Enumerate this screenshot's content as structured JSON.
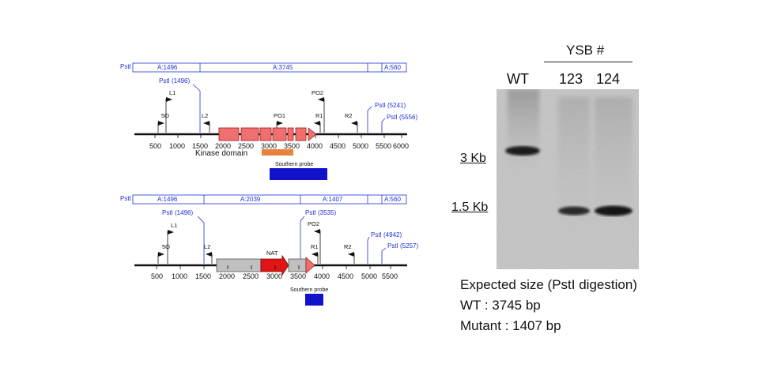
{
  "wt_map": {
    "restriction_bar": {
      "left_label": "PstI",
      "segments": [
        "A:1496",
        "A:3745",
        "A:560"
      ]
    },
    "pst_sites": [
      "PstI (1496)",
      "PstI (5241)",
      "PstI (5556)"
    ],
    "primers": [
      "L1",
      "5O",
      "L2",
      "PO1",
      "PO2",
      "R1",
      "R2"
    ],
    "axis_ticks": [
      "500",
      "1000",
      "1500",
      "2000",
      "2500",
      "3000",
      "3500",
      "4000",
      "4500",
      "5000",
      "5500",
      "6000"
    ],
    "feature_label": "Kinase domain",
    "probe_label": "Southern probe"
  },
  "mut_map": {
    "restriction_bar": {
      "left_label": "PstI",
      "segments": [
        "A:1496",
        "A:2039",
        "A:1407",
        "A:560"
      ]
    },
    "pst_sites": [
      "PstI (1496)",
      "PstI (3535)",
      "PstI (4942)",
      "PstI (5257)"
    ],
    "primers": [
      "L1",
      "5O",
      "L2",
      "PO2",
      "R1",
      "R2"
    ],
    "cassette_label": "NAT",
    "axis_ticks": [
      "500",
      "1000",
      "1500",
      "2000",
      "2500",
      "3000",
      "3500",
      "4000",
      "4500",
      "5000",
      "5500"
    ],
    "probe_label": "Southern probe"
  },
  "gel": {
    "group_label": "YSB #",
    "lanes": [
      "WT",
      "123",
      "124"
    ],
    "markers": [
      "3 Kb",
      "1.5 Kb"
    ]
  },
  "expected": {
    "title": "Expected size (PstI digestion)",
    "wt": "WT : 3745 bp",
    "mutant": "Mutant : 1407 bp"
  },
  "colors": {
    "exon": "#f07070",
    "kinase_domain": "#e9823a",
    "probe": "#1212cc",
    "nat": "#e01515",
    "cassette": "#c0c0c0",
    "annotation_blue": "#1f2fd8"
  }
}
